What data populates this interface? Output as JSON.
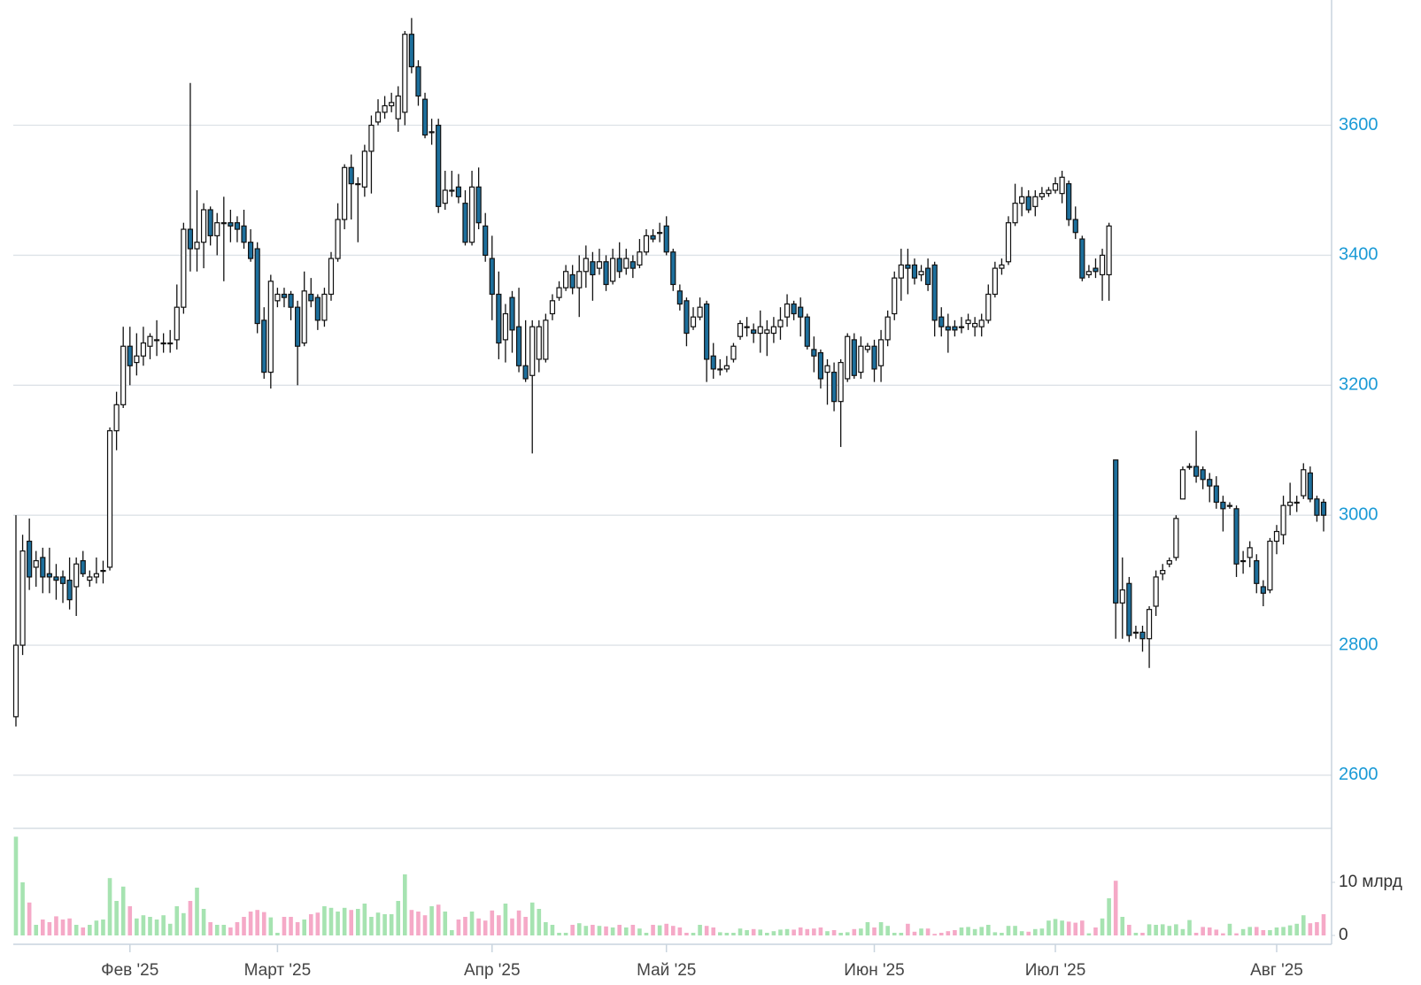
{
  "chart_data": {
    "type": "candlestick",
    "categories": [
      null,
      null,
      null,
      null,
      null,
      null,
      null,
      null,
      null,
      null,
      null,
      null,
      null,
      null,
      null,
      null,
      null,
      "Фев '25",
      null,
      null,
      null,
      null,
      null,
      null,
      null,
      null,
      null,
      null,
      null,
      null,
      null,
      null,
      null,
      null,
      null,
      null,
      null,
      null,
      null,
      "Март '25",
      null,
      null,
      null,
      null,
      null,
      null,
      null,
      null,
      null,
      null,
      null,
      null,
      null,
      null,
      null,
      null,
      null,
      null,
      null,
      null,
      null,
      null,
      null,
      null,
      null,
      null,
      null,
      null,
      null,
      null,
      null,
      "Апр '25",
      null,
      null,
      null,
      null,
      null,
      null,
      null,
      null,
      null,
      null,
      null,
      null,
      null,
      null,
      null,
      null,
      null,
      null,
      null,
      null,
      null,
      null,
      null,
      null,
      null,
      "Май '25",
      null,
      null,
      null,
      null,
      null,
      null,
      null,
      null,
      null,
      null,
      null,
      null,
      null,
      null,
      null,
      null,
      null,
      null,
      null,
      null,
      null,
      null,
      null,
      null,
      null,
      null,
      null,
      null,
      null,
      null,
      "Июн '25",
      null,
      null,
      null,
      null,
      null,
      null,
      null,
      null,
      null,
      null,
      null,
      null,
      null,
      null,
      null,
      null,
      null,
      null,
      null,
      null,
      null,
      null,
      null,
      null,
      null,
      null,
      "Июл '25",
      null,
      null,
      null,
      null,
      null,
      null,
      null,
      null,
      null,
      null,
      null,
      null,
      null,
      null,
      null,
      null,
      null,
      null,
      null,
      null,
      null,
      null,
      null,
      null,
      null,
      null,
      null,
      null,
      null,
      null,
      null,
      null,
      "Авг '25",
      null,
      null,
      null,
      null,
      null,
      null,
      null
    ],
    "open": [
      2690,
      2800,
      2960,
      2920,
      2935,
      2910,
      2905,
      2905,
      2900,
      2890,
      2930,
      2900,
      2905,
      2915,
      2920,
      3130,
      3170,
      3260,
      3235,
      3245,
      3260,
      3270,
      3265,
      3265,
      3270,
      3320,
      3440,
      3410,
      3420,
      3470,
      3430,
      3450,
      3450,
      3450,
      3445,
      3420,
      3410,
      3300,
      3220,
      3330,
      3340,
      3340,
      3320,
      3265,
      3340,
      3335,
      3300,
      3340,
      3395,
      3455,
      3535,
      3510,
      3505,
      3560,
      3605,
      3620,
      3630,
      3610,
      3620,
      3740,
      3690,
      3640,
      3590,
      3600,
      3480,
      3500,
      3505,
      3480,
      3420,
      3505,
      3445,
      3395,
      3340,
      3270,
      3335,
      3290,
      3230,
      3215,
      3240,
      3240,
      3310,
      3335,
      3350,
      3370,
      3350,
      3375,
      3390,
      3380,
      3390,
      3360,
      3395,
      3380,
      3390,
      3385,
      3405,
      3430,
      3435,
      3445,
      3405,
      3345,
      3330,
      3290,
      3305,
      3325,
      3245,
      3225,
      3225,
      3240,
      3275,
      3290,
      3285,
      3280,
      3280,
      3280,
      3290,
      3305,
      3325,
      3320,
      3305,
      3255,
      3250,
      3220,
      3220,
      3175,
      3210,
      3270,
      3220,
      3255,
      3260,
      3230,
      3270,
      3310,
      3365,
      3385,
      3385,
      3370,
      3380,
      3385,
      3305,
      3290,
      3290,
      3290,
      3295,
      3290,
      3290,
      3300,
      3340,
      3380,
      3390,
      3450,
      3480,
      3490,
      3475,
      3490,
      3495,
      3500,
      3495,
      3510,
      3455,
      3425,
      3370,
      3380,
      3370,
      3370,
      3085,
      2865,
      2895,
      2820,
      2820,
      2810,
      2860,
      2910,
      2925,
      2935,
      3025,
      3075,
      3075,
      3070,
      3055,
      3045,
      3020,
      3015,
      3010,
      2930,
      2935,
      2930,
      2890,
      2885,
      2960,
      2970,
      3015,
      3020,
      3030,
      3065,
      3025,
      3020
    ],
    "high": [
      3000,
      2970,
      2995,
      2945,
      2950,
      2950,
      2925,
      2915,
      2935,
      2935,
      2945,
      2915,
      2935,
      2930,
      3135,
      3190,
      3290,
      3290,
      3280,
      3290,
      3280,
      3300,
      3280,
      3285,
      3355,
      3450,
      3665,
      3500,
      3480,
      3475,
      3465,
      3490,
      3470,
      3460,
      3470,
      3440,
      3420,
      3320,
      3370,
      3350,
      3350,
      3345,
      3330,
      3375,
      3365,
      3340,
      3350,
      3405,
      3480,
      3540,
      3555,
      3520,
      3570,
      3615,
      3640,
      3645,
      3650,
      3660,
      3745,
      3765,
      3700,
      3650,
      3610,
      3610,
      3530,
      3530,
      3525,
      3500,
      3530,
      3535,
      3465,
      3430,
      3375,
      3325,
      3345,
      3350,
      3300,
      3300,
      3300,
      3310,
      3340,
      3360,
      3385,
      3385,
      3400,
      3415,
      3405,
      3410,
      3400,
      3410,
      3420,
      3410,
      3400,
      3425,
      3440,
      3440,
      3450,
      3460,
      3410,
      3355,
      3335,
      3320,
      3335,
      3330,
      3265,
      3240,
      3245,
      3265,
      3300,
      3305,
      3295,
      3315,
      3300,
      3305,
      3320,
      3340,
      3330,
      3335,
      3310,
      3275,
      3255,
      3240,
      3235,
      3240,
      3280,
      3280,
      3275,
      3265,
      3270,
      3285,
      3315,
      3375,
      3410,
      3410,
      3395,
      3385,
      3395,
      3390,
      3320,
      3310,
      3300,
      3305,
      3310,
      3305,
      3310,
      3355,
      3390,
      3395,
      3460,
      3510,
      3505,
      3500,
      3500,
      3505,
      3505,
      3520,
      3530,
      3515,
      3475,
      3430,
      3385,
      3395,
      3410,
      3450,
      3085,
      2935,
      2905,
      2830,
      2830,
      2860,
      2915,
      2925,
      2935,
      3000,
      3075,
      3080,
      3130,
      3075,
      3065,
      3060,
      3030,
      3020,
      3015,
      2945,
      2960,
      2940,
      2900,
      2965,
      2985,
      3030,
      3050,
      3030,
      3080,
      3075,
      3030,
      3025
    ],
    "low": [
      2675,
      2785,
      2885,
      2890,
      2880,
      2880,
      2870,
      2865,
      2855,
      2845,
      2905,
      2890,
      2895,
      2895,
      2915,
      3100,
      3165,
      3200,
      3215,
      3230,
      3240,
      3245,
      3250,
      3250,
      3255,
      3310,
      3375,
      3375,
      3380,
      3415,
      3400,
      3360,
      3420,
      3420,
      3410,
      3390,
      3280,
      3210,
      3195,
      3320,
      3320,
      3300,
      3200,
      3260,
      3320,
      3285,
      3290,
      3330,
      3390,
      3440,
      3455,
      3420,
      3490,
      3495,
      3600,
      3610,
      3620,
      3590,
      3600,
      3680,
      3630,
      3580,
      3570,
      3465,
      3470,
      3490,
      3480,
      3415,
      3415,
      3440,
      3390,
      3300,
      3240,
      3235,
      3250,
      3220,
      3205,
      3095,
      3220,
      3235,
      3300,
      3330,
      3345,
      3340,
      3305,
      3350,
      3330,
      3370,
      3345,
      3355,
      3365,
      3370,
      3365,
      3380,
      3400,
      3420,
      3420,
      3400,
      3345,
      3315,
      3260,
      3285,
      3300,
      3205,
      3210,
      3215,
      3220,
      3235,
      3270,
      3275,
      3265,
      3250,
      3245,
      3265,
      3270,
      3290,
      3300,
      3275,
      3255,
      3220,
      3195,
      3170,
      3160,
      3105,
      3205,
      3210,
      3210,
      3250,
      3205,
      3205,
      3260,
      3300,
      3330,
      3340,
      3355,
      3360,
      3345,
      3275,
      3275,
      3250,
      3275,
      3280,
      3285,
      3275,
      3275,
      3295,
      3335,
      3370,
      3385,
      3445,
      3460,
      3465,
      3460,
      3485,
      3490,
      3495,
      3480,
      3445,
      3425,
      3360,
      3365,
      3365,
      3330,
      3330,
      2810,
      2810,
      2805,
      2810,
      2790,
      2765,
      2845,
      2900,
      2920,
      2930,
      3025,
      3070,
      3050,
      3040,
      3020,
      3010,
      2975,
      3010,
      2905,
      2910,
      2920,
      2880,
      2860,
      2880,
      2940,
      2955,
      3000,
      3005,
      3025,
      3020,
      2990,
      2975
    ],
    "close": [
      2800,
      2945,
      2905,
      2930,
      2905,
      2905,
      2900,
      2895,
      2870,
      2925,
      2910,
      2905,
      2910,
      2915,
      3130,
      3170,
      3260,
      3230,
      3245,
      3265,
      3275,
      3270,
      3265,
      3265,
      3320,
      3440,
      3410,
      3420,
      3470,
      3430,
      3450,
      3450,
      3445,
      3440,
      3420,
      3395,
      3295,
      3220,
      3360,
      3340,
      3335,
      3320,
      3260,
      3345,
      3330,
      3300,
      3340,
      3395,
      3455,
      3535,
      3510,
      3510,
      3560,
      3600,
      3620,
      3630,
      3635,
      3645,
      3740,
      3690,
      3645,
      3585,
      3590,
      3475,
      3500,
      3500,
      3490,
      3420,
      3505,
      3450,
      3400,
      3340,
      3265,
      3310,
      3285,
      3230,
      3210,
      3290,
      3290,
      3300,
      3330,
      3350,
      3375,
      3350,
      3375,
      3395,
      3370,
      3390,
      3355,
      3395,
      3375,
      3395,
      3380,
      3405,
      3430,
      3425,
      3435,
      3405,
      3355,
      3325,
      3280,
      3305,
      3320,
      3240,
      3225,
      3225,
      3230,
      3260,
      3295,
      3290,
      3280,
      3290,
      3285,
      3290,
      3300,
      3325,
      3310,
      3305,
      3260,
      3245,
      3210,
      3230,
      3175,
      3235,
      3275,
      3215,
      3260,
      3260,
      3225,
      3270,
      3305,
      3365,
      3385,
      3380,
      3365,
      3375,
      3355,
      3300,
      3290,
      3285,
      3285,
      3290,
      3300,
      3295,
      3300,
      3340,
      3380,
      3385,
      3450,
      3480,
      3490,
      3470,
      3490,
      3495,
      3500,
      3510,
      3520,
      3455,
      3435,
      3365,
      3375,
      3375,
      3400,
      3445,
      2865,
      2885,
      2815,
      2820,
      2810,
      2855,
      2905,
      2915,
      2930,
      2995,
      3070,
      3075,
      3060,
      3055,
      3045,
      3020,
      3010,
      3015,
      2925,
      2930,
      2950,
      2895,
      2880,
      2960,
      2975,
      3015,
      3020,
      3020,
      3070,
      3025,
      3000,
      3000
    ],
    "ylim": [
      2540,
      3790
    ],
    "yticks": [
      2600,
      2800,
      3000,
      3200,
      3400,
      3600
    ],
    "grid": true,
    "up_color": "#ffffff",
    "down_color": "#1d6f9c",
    "volume": {
      "type": "bar",
      "values": [
        18.6,
        10,
        6.2,
        2,
        3,
        2.5,
        3.6,
        3,
        3.2,
        2,
        1.5,
        2,
        2.8,
        3,
        10.8,
        6.5,
        9.2,
        5.5,
        3.2,
        3.8,
        3.5,
        3,
        3.8,
        2.2,
        5.5,
        4.2,
        6.5,
        9,
        5,
        2.5,
        2,
        2,
        1.5,
        2.5,
        3.5,
        4.5,
        4.8,
        4.4,
        3.4,
        0.5,
        3.5,
        3.5,
        2.5,
        3,
        4,
        4.3,
        5.5,
        5.2,
        4.5,
        5.2,
        4.8,
        5,
        6,
        3.5,
        4.3,
        4,
        4,
        6.5,
        11.5,
        4.8,
        4.5,
        3.8,
        5.5,
        5.8,
        4.5,
        1,
        3,
        3.5,
        4.5,
        3.2,
        2.8,
        4.7,
        3.8,
        6,
        3.2,
        4.7,
        3.5,
        6.2,
        5,
        2.5,
        2,
        0.5,
        0.5,
        2,
        2.3,
        1.8,
        2,
        1.8,
        1.7,
        1.5,
        2,
        1.5,
        2,
        1.3,
        0.5,
        2,
        1.9,
        2.2,
        1.8,
        1.5,
        0.5,
        0.5,
        2,
        1.8,
        1.5,
        0.6,
        0.5,
        0.5,
        1.3,
        1,
        1.2,
        1.1,
        0.5,
        0.8,
        1.1,
        1.2,
        1.1,
        1.5,
        1.2,
        1.3,
        1.5,
        0.8,
        1,
        0.5,
        0.6,
        1.2,
        1.3,
        2.5,
        1.5,
        2.5,
        1.8,
        0.5,
        0.5,
        2.2,
        0.7,
        1.3,
        1.3,
        0.3,
        0.5,
        0.8,
        1,
        1.5,
        1.6,
        1.2,
        1.6,
        2,
        0.6,
        0.5,
        1.8,
        1.8,
        0.8,
        0.7,
        1.2,
        1.3,
        2.8,
        3.1,
        2.8,
        2.6,
        2.4,
        2.8,
        0.4,
        1.5,
        3.2,
        7,
        10.3,
        3.5,
        2,
        0.5,
        0.5,
        2.1,
        2,
        2.1,
        1.8,
        2.1,
        1.2,
        2.9,
        0.5,
        1.6,
        1.5,
        1.1,
        0.4,
        2.2,
        0.4,
        1.2,
        1.6,
        1.6,
        1,
        1,
        1.5,
        1.6,
        1.9,
        2.2,
        3.8,
        2.3,
        2.5,
        4
      ],
      "ylim": [
        0,
        20
      ],
      "yticks": [
        0,
        {
          "value": 10,
          "label": "10 млрд"
        }
      ],
      "up_color": "#a6e3b1",
      "down_color": "#f5a9c7"
    }
  }
}
